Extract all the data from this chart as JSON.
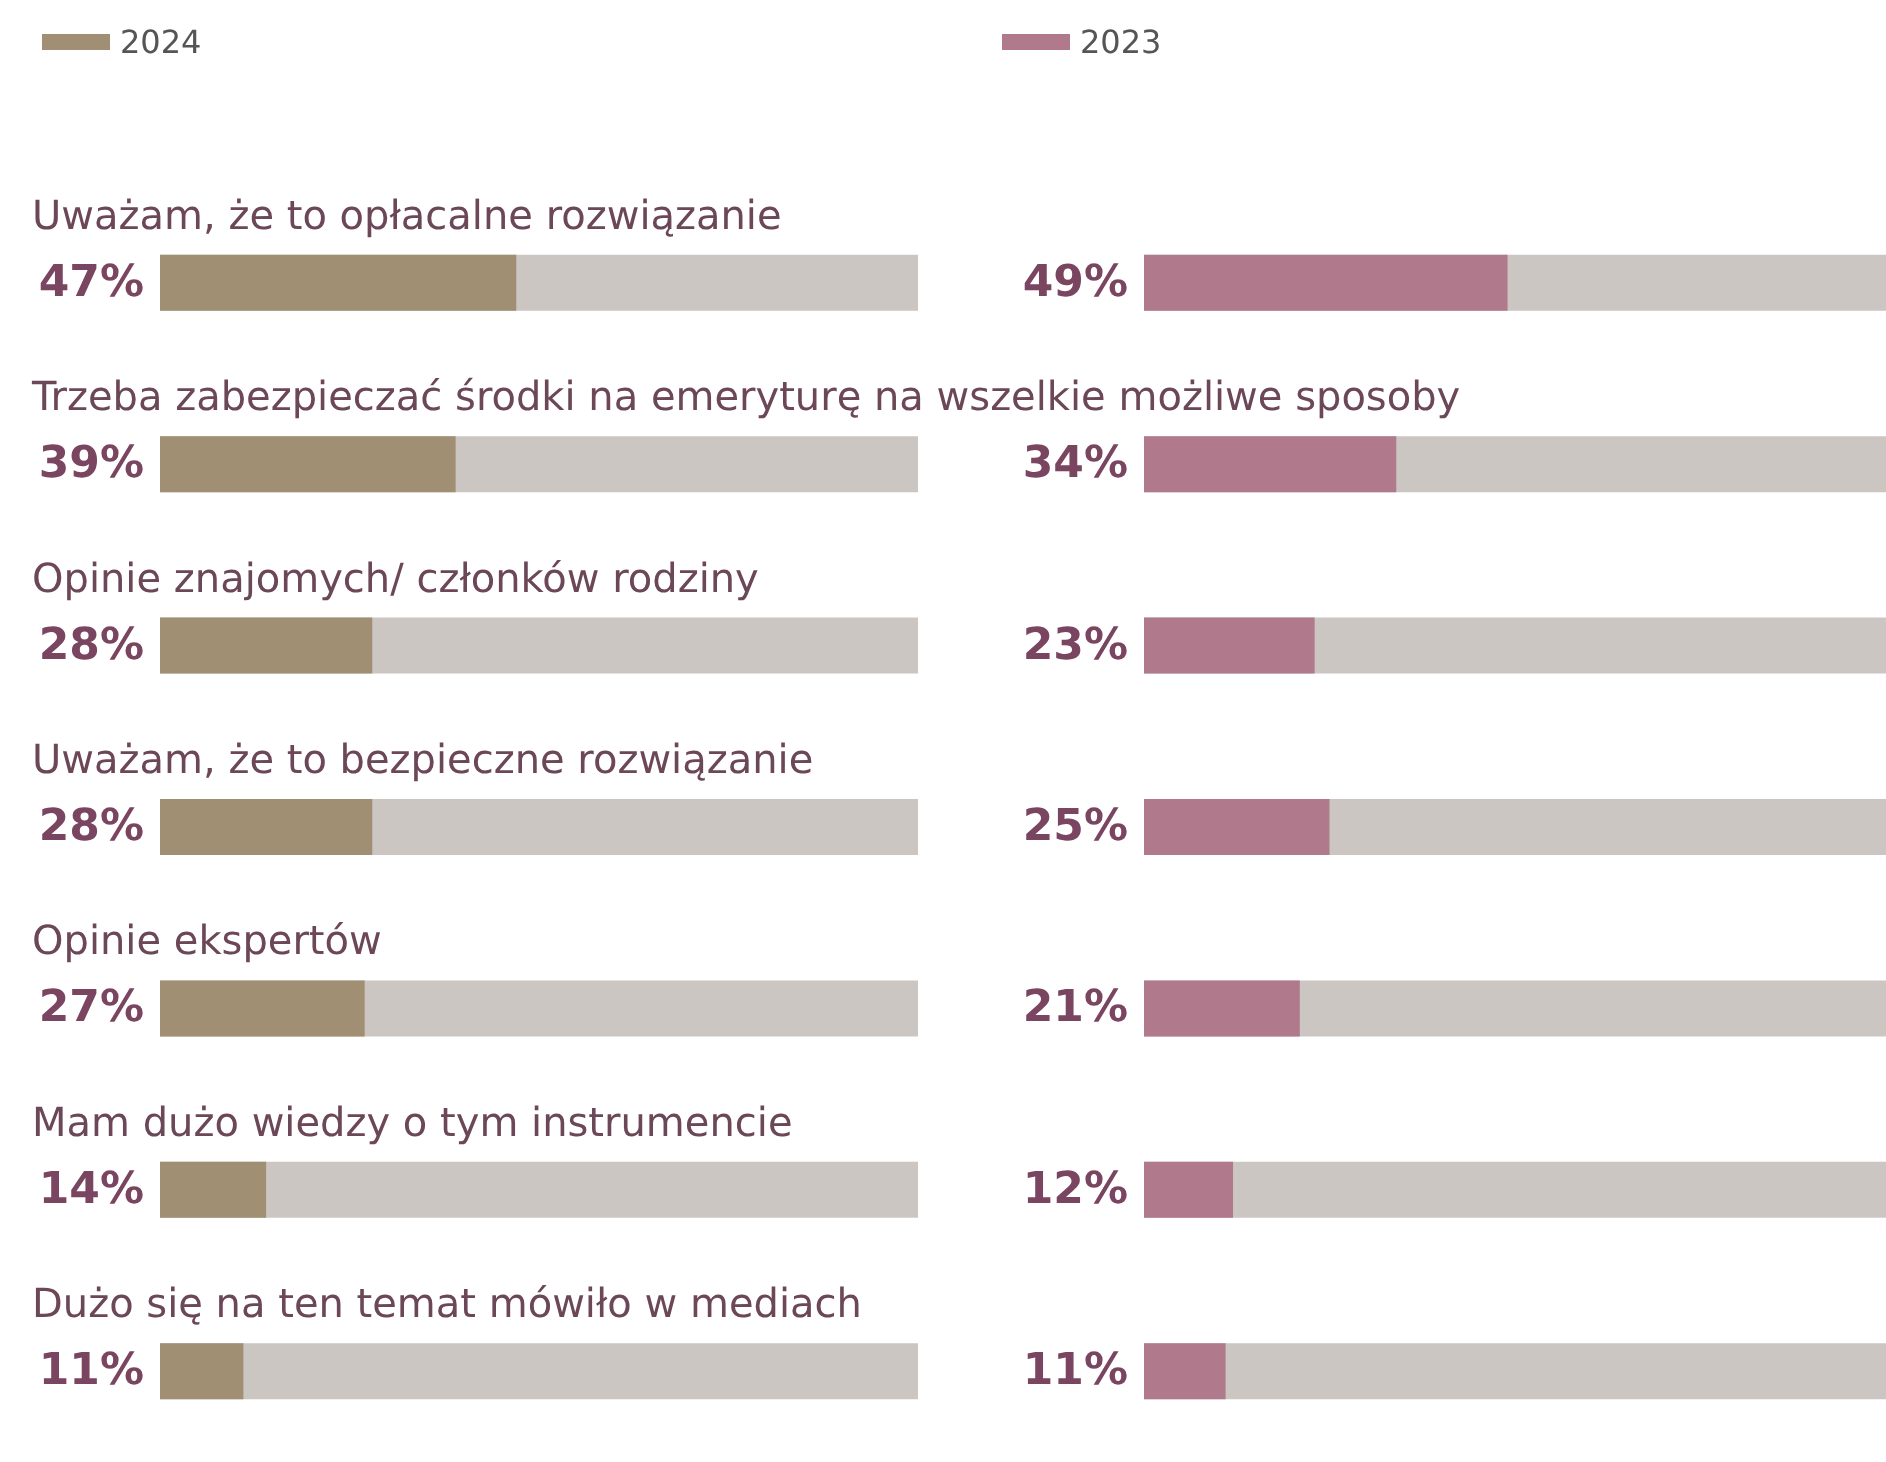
{
  "chart_data": [
    {
      "type": "bar",
      "orientation": "horizontal",
      "categories": [
        "Uważam, że to opłacalne rozwiązanie",
        "Trzeba zabezpieczać środki na emeryturę na wszelkie możliwe sposoby",
        "Opinie znajomych/ członków rodziny",
        "Uważam, że to bezpieczne rozwiązanie",
        "Opinie ekspertów",
        "Mam dużo wiedzy o tym instrumencie",
        "Dużo się na ten temat mówiło w mediach"
      ],
      "series": [
        {
          "name": "2024",
          "color": "#a08f72",
          "values": [
            47,
            39,
            28,
            28,
            27,
            14,
            11
          ],
          "value_labels": [
            "47%",
            "39%",
            "28%",
            "28%",
            "27%",
            "14%",
            "11%"
          ]
        }
      ],
      "xlim": [
        0,
        100
      ],
      "tick_labels": "y",
      "legend": "top left"
    },
    {
      "type": "bar",
      "orientation": "horizontal",
      "categories": [
        null,
        null,
        null,
        null,
        null,
        null,
        null
      ],
      "series": [
        {
          "name": "2023",
          "color": "#b07a8c",
          "values": [
            49,
            34,
            23,
            25,
            21,
            12,
            11
          ],
          "value_labels": [
            "49%",
            "34%",
            "23%",
            "25%",
            "21%",
            "12%",
            "11%"
          ]
        }
      ],
      "xlim": [
        0,
        100
      ],
      "tick_labels": false,
      "legend": "top left"
    }
  ]
}
